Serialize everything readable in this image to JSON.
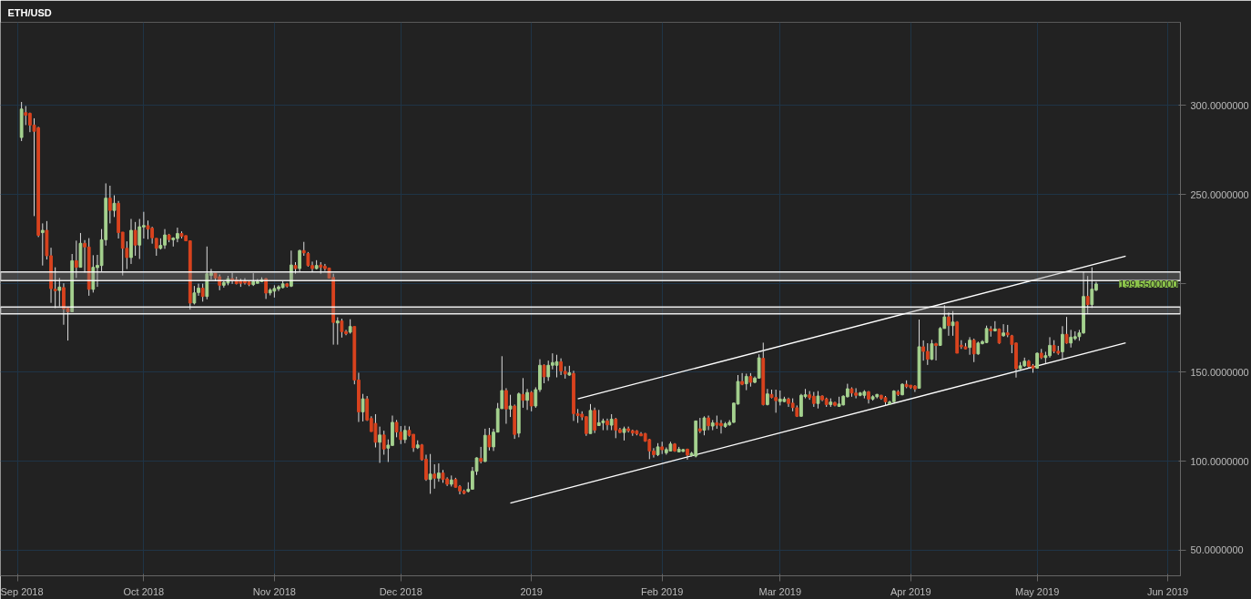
{
  "chart_data": {
    "type": "candlestick",
    "title": "ETH/USD",
    "grid": true,
    "colors": [
      "#a5d28f",
      "#d9431e",
      "#d9431e",
      "#d9431e",
      "#d9431e",
      "#a5d28f",
      "#d9431e",
      "#d9431e",
      "#d9431e",
      "#a5d28f",
      "#d9431e",
      "#d9431e",
      "#a5d28f",
      "#d9431e",
      "#a5d28f",
      "#d9431e",
      "#d9431e",
      "#a5d28f",
      "#a5d28f",
      "#a5d28f",
      "#a5d28f",
      "#d9431e",
      "#a5d28f",
      "#d9431e",
      "#d9431e",
      "#d9431e",
      "#a5d28f",
      "#d9431e",
      "#a5d28f",
      "#a5d28f",
      "#d9431e",
      "#d9431e",
      "#d9431e",
      "#a5d28f",
      "#a5d28f",
      "#d9431e",
      "#a5d28f",
      "#a5d28f",
      "#d9431e",
      "#d9431e",
      "#d9431e",
      "#a5d28f",
      "#a5d28f",
      "#d9431e",
      "#a5d28f",
      "#a5d28f",
      "#d9431e",
      "#d9431e",
      "#a5d28f",
      "#a5d28f",
      "#d9431e",
      "#d9431e",
      "#d9431e",
      "#d9431e",
      "#d9431e",
      "#a5d28f",
      "#a5d28f",
      "#a5d28f",
      "#d9431e",
      "#a5d28f",
      "#a5d28f",
      "#a5d28f",
      "#a5d28f",
      "#d9431e",
      "#a5d28f",
      "#d9431e",
      "#a5d28f",
      "#d9431e",
      "#d9431e",
      "#d9431e",
      "#a5d28f",
      "#d9431e",
      "#d9431e",
      "#d9431e",
      "#d9431e",
      "#a5d28f",
      "#d9431e",
      "#d9431e",
      "#a5d28f",
      "#d9431e",
      "#d9431e",
      "#a5d28f",
      "#d9431e",
      "#d9431e",
      "#d9431e",
      "#a5d28f",
      "#d9431e",
      "#a5d28f",
      "#a5d28f",
      "#d9431e",
      "#d9431e",
      "#a5d28f",
      "#d9431e",
      "#d9431e",
      "#a5d28f",
      "#d9431e",
      "#d9431e",
      "#a5d28f",
      "#d9431e",
      "#a5d28f",
      "#d9431e",
      "#d9431e",
      "#a5d28f",
      "#d9431e",
      "#d9431e",
      "#d9431e",
      "#a5d28f",
      "#a5d28f",
      "#a5d28f",
      "#d9431e",
      "#a5d28f",
      "#d9431e",
      "#a5d28f",
      "#a5d28f",
      "#a5d28f",
      "#d9431e",
      "#a5d28f",
      "#d9431e",
      "#a5d28f",
      "#d9431e",
      "#a5d28f",
      "#d9431e",
      "#a5d28f",
      "#a5d28f",
      "#d9431e",
      "#a5d28f",
      "#a5d28f",
      "#a5d28f",
      "#d9431e",
      "#d9431e",
      "#a5d28f",
      "#d9431e",
      "#d9431e",
      "#d9431e",
      "#d9431e",
      "#a5d28f",
      "#d9431e",
      "#a5d28f",
      "#a5d28f",
      "#d9431e",
      "#a5d28f",
      "#d9431e",
      "#d9431e",
      "#a5d28f",
      "#d9431e",
      "#d9431e",
      "#d9431e",
      "#d9431e",
      "#d9431e",
      "#d9431e",
      "#d9431e",
      "#a5d28f",
      "#d9431e",
      "#a5d28f",
      "#a5d28f",
      "#d9431e",
      "#a5d28f",
      "#a5d28f",
      "#d9431e",
      "#a5d28f",
      "#a5d28f",
      "#d9431e",
      "#a5d28f",
      "#d9431e",
      "#a5d28f",
      "#d9431e",
      "#d9431e",
      "#a5d28f",
      "#a5d28f",
      "#a5d28f",
      "#a5d28f",
      "#d9431e",
      "#a5d28f",
      "#d9431e",
      "#a5d28f",
      "#a5d28f",
      "#d9431e",
      "#a5d28f",
      "#d9431e",
      "#d9431e",
      "#a5d28f",
      "#a5d28f",
      "#d9431e",
      "#d9431e",
      "#d9431e",
      "#a5d28f",
      "#a5d28f",
      "#d9431e",
      "#d9431e",
      "#a5d28f",
      "#d9431e",
      "#d9431e",
      "#a5d28f",
      "#d9431e",
      "#a5d28f",
      "#a5d28f",
      "#a5d28f",
      "#d9431e",
      "#d9431e",
      "#a5d28f",
      "#a5d28f",
      "#d9431e",
      "#a5d28f",
      "#a5d28f",
      "#d9431e",
      "#d9431e",
      "#a5d28f",
      "#a5d28f",
      "#d9431e",
      "#a5d28f",
      "#d9431e",
      "#d9431e",
      "#d9431e",
      "#a5d28f",
      "#d9431e",
      "#d9431e",
      "#a5d28f",
      "#d9431e",
      "#a5d28f",
      "#a5d28f",
      "#d9431e",
      "#a5d28f",
      "#d9431e",
      "#d9431e",
      "#d9431e",
      "#a5d28f",
      "#d9431e",
      "#a5d28f",
      "#a5d28f",
      "#a5d28f",
      "#d9431e",
      "#a5d28f",
      "#d9431e",
      "#a5d28f",
      "#d9431e",
      "#d9431e",
      "#d9431e",
      "#a5d28f",
      "#a5d28f",
      "#d9431e",
      "#d9431e",
      "#a5d28f",
      "#d9431e",
      "#a5d28f",
      "#a5d28f",
      "#d9431e",
      "#d9431e",
      "#a5d28f",
      "#d9431e",
      "#a5d28f",
      "#a5d28f",
      "#a5d28f",
      "#a5d28f",
      "#d9431e",
      "#a5d28f",
      "#a5d28f"
    ],
    "xlim": [
      "2018-08-28",
      "2019-06-04"
    ],
    "ylim": [
      35.5,
      346.8
    ],
    "xticks": [
      {
        "value": "2018-09-01",
        "label": "Sep 2018"
      },
      {
        "value": "2018-10-01",
        "label": "Oct 2018"
      },
      {
        "value": "2018-11-01",
        "label": "Nov 2018"
      },
      {
        "value": "2018-12-01",
        "label": "Dec 2018"
      },
      {
        "value": "2019-01-01",
        "label": "2019"
      },
      {
        "value": "2019-02-01",
        "label": "Feb 2019"
      },
      {
        "value": "2019-03-01",
        "label": "Mar 2019"
      },
      {
        "value": "2019-04-01",
        "label": "Apr 2019"
      },
      {
        "value": "2019-05-01",
        "label": "May 2019"
      },
      {
        "value": "2019-06-01",
        "label": "Jun 2019"
      }
    ],
    "yticks": [
      {
        "value": 50,
        "label": "50.0000000"
      },
      {
        "value": 100,
        "label": "100.0000000"
      },
      {
        "value": 150,
        "label": "150.0000000"
      },
      {
        "value": 200,
        "label": null
      },
      {
        "value": 250,
        "label": "250.0000000"
      },
      {
        "value": 300,
        "label": "300.0000000"
      }
    ],
    "bands": [
      {
        "axis": "y",
        "from": 201.5,
        "to": 206.4,
        "color": "#ffffff"
      },
      {
        "axis": "y",
        "from": 182.8,
        "to": 186.7,
        "color": "#ffffff"
      }
    ],
    "annotations": [
      {
        "text": "199.5500000",
        "y": 199.55
      }
    ],
    "series": [
      {
        "type": "line",
        "color": "#ffffff",
        "x": [
          "2019-01-12",
          "2019-05-22"
        ],
        "values": [
          135.0,
          215.3
        ]
      },
      {
        "type": "line",
        "color": "#ffffff",
        "x": [
          "2018-12-27",
          "2019-05-22"
        ],
        "values": [
          76.4,
          166.5
        ]
      }
    ],
    "x": [
      "2018-09-02",
      "2018-09-03",
      "2018-09-04",
      "2018-09-05",
      "2018-09-06",
      "2018-09-07",
      "2018-09-08",
      "2018-09-09",
      "2018-09-10",
      "2018-09-11",
      "2018-09-12",
      "2018-09-13",
      "2018-09-14",
      "2018-09-15",
      "2018-09-16",
      "2018-09-17",
      "2018-09-18",
      "2018-09-19",
      "2018-09-20",
      "2018-09-21",
      "2018-09-22",
      "2018-09-23",
      "2018-09-24",
      "2018-09-25",
      "2018-09-26",
      "2018-09-27",
      "2018-09-28",
      "2018-09-29",
      "2018-09-30",
      "2018-10-01",
      "2018-10-02",
      "2018-10-03",
      "2018-10-04",
      "2018-10-05",
      "2018-10-06",
      "2018-10-07",
      "2018-10-08",
      "2018-10-09",
      "2018-10-10",
      "2018-10-11",
      "2018-10-12",
      "2018-10-13",
      "2018-10-14",
      "2018-10-15",
      "2018-10-16",
      "2018-10-17",
      "2018-10-18",
      "2018-10-19",
      "2018-10-20",
      "2018-10-21",
      "2018-10-22",
      "2018-10-23",
      "2018-10-24",
      "2018-10-25",
      "2018-10-26",
      "2018-10-27",
      "2018-10-28",
      "2018-10-29",
      "2018-10-30",
      "2018-10-31",
      "2018-11-01",
      "2018-11-02",
      "2018-11-03",
      "2018-11-04",
      "2018-11-05",
      "2018-11-06",
      "2018-11-07",
      "2018-11-08",
      "2018-11-09",
      "2018-11-10",
      "2018-11-11",
      "2018-11-12",
      "2018-11-13",
      "2018-11-14",
      "2018-11-15",
      "2018-11-16",
      "2018-11-17",
      "2018-11-18",
      "2018-11-19",
      "2018-11-20",
      "2018-11-21",
      "2018-11-22",
      "2018-11-23",
      "2018-11-24",
      "2018-11-25",
      "2018-11-26",
      "2018-11-27",
      "2018-11-28",
      "2018-11-29",
      "2018-11-30",
      "2018-12-01",
      "2018-12-02",
      "2018-12-03",
      "2018-12-04",
      "2018-12-05",
      "2018-12-06",
      "2018-12-07",
      "2018-12-08",
      "2018-12-09",
      "2018-12-10",
      "2018-12-11",
      "2018-12-12",
      "2018-12-13",
      "2018-12-14",
      "2018-12-15",
      "2018-12-16",
      "2018-12-17",
      "2018-12-18",
      "2018-12-19",
      "2018-12-20",
      "2018-12-21",
      "2018-12-22",
      "2018-12-23",
      "2018-12-24",
      "2018-12-25",
      "2018-12-26",
      "2018-12-27",
      "2018-12-28",
      "2018-12-29",
      "2018-12-30",
      "2018-12-31",
      "2019-01-01",
      "2019-01-02",
      "2019-01-03",
      "2019-01-04",
      "2019-01-05",
      "2019-01-06",
      "2019-01-07",
      "2019-01-08",
      "2019-01-09",
      "2019-01-10",
      "2019-01-11",
      "2019-01-12",
      "2019-01-13",
      "2019-01-14",
      "2019-01-15",
      "2019-01-16",
      "2019-01-17",
      "2019-01-18",
      "2019-01-19",
      "2019-01-20",
      "2019-01-21",
      "2019-01-22",
      "2019-01-23",
      "2019-01-24",
      "2019-01-25",
      "2019-01-26",
      "2019-01-27",
      "2019-01-28",
      "2019-01-29",
      "2019-01-30",
      "2019-01-31",
      "2019-02-01",
      "2019-02-02",
      "2019-02-03",
      "2019-02-04",
      "2019-02-05",
      "2019-02-06",
      "2019-02-07",
      "2019-02-08",
      "2019-02-09",
      "2019-02-10",
      "2019-02-11",
      "2019-02-12",
      "2019-02-13",
      "2019-02-14",
      "2019-02-15",
      "2019-02-16",
      "2019-02-17",
      "2019-02-18",
      "2019-02-19",
      "2019-02-20",
      "2019-02-21",
      "2019-02-22",
      "2019-02-23",
      "2019-02-24",
      "2019-02-25",
      "2019-02-26",
      "2019-02-27",
      "2019-02-28",
      "2019-03-01",
      "2019-03-02",
      "2019-03-03",
      "2019-03-04",
      "2019-03-05",
      "2019-03-06",
      "2019-03-07",
      "2019-03-08",
      "2019-03-09",
      "2019-03-10",
      "2019-03-11",
      "2019-03-12",
      "2019-03-13",
      "2019-03-14",
      "2019-03-15",
      "2019-03-16",
      "2019-03-17",
      "2019-03-18",
      "2019-03-19",
      "2019-03-20",
      "2019-03-21",
      "2019-03-22",
      "2019-03-23",
      "2019-03-24",
      "2019-03-25",
      "2019-03-26",
      "2019-03-27",
      "2019-03-28",
      "2019-03-29",
      "2019-03-30",
      "2019-03-31",
      "2019-04-01",
      "2019-04-02",
      "2019-04-03",
      "2019-04-04",
      "2019-04-05",
      "2019-04-06",
      "2019-04-07",
      "2019-04-08",
      "2019-04-09",
      "2019-04-10",
      "2019-04-11",
      "2019-04-12",
      "2019-04-13",
      "2019-04-14",
      "2019-04-15",
      "2019-04-16",
      "2019-04-17",
      "2019-04-18",
      "2019-04-19",
      "2019-04-20",
      "2019-04-21",
      "2019-04-22",
      "2019-04-23",
      "2019-04-24",
      "2019-04-25",
      "2019-04-26",
      "2019-04-27",
      "2019-04-28",
      "2019-04-29",
      "2019-04-30",
      "2019-05-01",
      "2019-05-02",
      "2019-05-03",
      "2019-05-04",
      "2019-05-05",
      "2019-05-06",
      "2019-05-07",
      "2019-05-08",
      "2019-05-09",
      "2019-05-10",
      "2019-05-11",
      "2019-05-12",
      "2019-05-13",
      "2019-05-14",
      "2019-05-15"
    ],
    "ohlc": [
      [
        282,
        302,
        280,
        298
      ],
      [
        296,
        299.7,
        289,
        294.5
      ],
      [
        295.6,
        296,
        285,
        289
      ],
      [
        289,
        292.8,
        237.8,
        285.5
      ],
      [
        287.5,
        288,
        226,
        227
      ],
      [
        228.5,
        233.7,
        210,
        229.8
      ],
      [
        229.8,
        235,
        213.4,
        215.5
      ],
      [
        215.5,
        220,
        189,
        197
      ],
      [
        196.7,
        209,
        186,
        195.8
      ],
      [
        196,
        203,
        187,
        197.9
      ],
      [
        197.6,
        200,
        176.7,
        185.7
      ],
      [
        186,
        186,
        167.8,
        184
      ],
      [
        184,
        216.5,
        184,
        212.7
      ],
      [
        212.7,
        224,
        203,
        209
      ],
      [
        209,
        228.3,
        209,
        222.5
      ],
      [
        222.5,
        224.3,
        206,
        220.4
      ],
      [
        220.4,
        225.4,
        193,
        196.6
      ],
      [
        196.6,
        215.8,
        194.8,
        209
      ],
      [
        208.8,
        216,
        198,
        210.1
      ],
      [
        210,
        230.5,
        206.8,
        224.5
      ],
      [
        224.5,
        256.2,
        221.2,
        247.9
      ],
      [
        247.9,
        254.9,
        233.7,
        241
      ],
      [
        241,
        249.5,
        237.3,
        245
      ],
      [
        245,
        246.3,
        225.2,
        228.5
      ],
      [
        228.8,
        228.8,
        204.4,
        219.7
      ],
      [
        219.7,
        223.6,
        208,
        214.5
      ],
      [
        214.5,
        236.2,
        210.9,
        229.8
      ],
      [
        229.8,
        234.5,
        215.5,
        221.5
      ],
      [
        221.5,
        236.2,
        213.7,
        231.8
      ],
      [
        231.7,
        240.2,
        225.2,
        232.5
      ],
      [
        232.4,
        235.3,
        224.8,
        230.5
      ],
      [
        231,
        231.8,
        222.3,
        225.6
      ],
      [
        225.3,
        225.3,
        215.5,
        219.7
      ],
      [
        219.7,
        225.3,
        219,
        221.3
      ],
      [
        221.5,
        230.5,
        219.4,
        227.2
      ],
      [
        227.2,
        227.8,
        223.1,
        224.6
      ],
      [
        224.5,
        225.9,
        220.7,
        225.4
      ],
      [
        225.2,
        231.3,
        223.1,
        228
      ],
      [
        228,
        229.2,
        225.3,
        226.4
      ],
      [
        226.8,
        226.8,
        223.9,
        223.9
      ],
      [
        223.9,
        223.9,
        185.2,
        188.9
      ],
      [
        188.9,
        198.5,
        188.1,
        194.6
      ],
      [
        194.8,
        199.8,
        193,
        197.3
      ],
      [
        197.3,
        199.8,
        189.7,
        192.6
      ],
      [
        192.6,
        220.7,
        191,
        205.4
      ],
      [
        204.4,
        208.1,
        202.1,
        205.7
      ],
      [
        205.7,
        205.7,
        201.3,
        203
      ],
      [
        203.7,
        205,
        196.1,
        198.9
      ],
      [
        198.9,
        201.3,
        197.6,
        200.5
      ],
      [
        200.2,
        204.2,
        198.9,
        202.6
      ],
      [
        202.6,
        205.9,
        199.7,
        201.8
      ],
      [
        202,
        203.7,
        199.4,
        199.8
      ],
      [
        201.3,
        202.6,
        198,
        200
      ],
      [
        201.3,
        202.9,
        199.3,
        200.2
      ],
      [
        200.8,
        201.3,
        198.4,
        199.3
      ],
      [
        199.3,
        205.7,
        198.5,
        201
      ],
      [
        200,
        202.4,
        200,
        201
      ],
      [
        201,
        203.4,
        201,
        202.1
      ],
      [
        202.6,
        202.9,
        191.2,
        194.5
      ],
      [
        194.6,
        197.2,
        193.2,
        196.2
      ],
      [
        195.6,
        198.9,
        192,
        197.1
      ],
      [
        196.9,
        198.9,
        195.6,
        198
      ],
      [
        197.6,
        201.3,
        197.2,
        199.7
      ],
      [
        199.7,
        200.2,
        197.6,
        198.4
      ],
      [
        198.4,
        218.4,
        197.9,
        210.3
      ],
      [
        210,
        211.9,
        205.4,
        208.3
      ],
      [
        208.3,
        218.9,
        206.7,
        218.4
      ],
      [
        218.4,
        223.3,
        215.5,
        217.1
      ],
      [
        216.8,
        217.6,
        209.4,
        210
      ],
      [
        210,
        212.2,
        206.2,
        208.3
      ],
      [
        208.3,
        213,
        207.8,
        210
      ],
      [
        210.3,
        211.9,
        205.4,
        209
      ],
      [
        209.6,
        210.9,
        207,
        208.3
      ],
      [
        208.6,
        208.6,
        202.9,
        202.9
      ],
      [
        203.3,
        205.4,
        165.5,
        178
      ],
      [
        177.7,
        180.9,
        165.5,
        178.8
      ],
      [
        178.8,
        180.1,
        169.5,
        172.8
      ],
      [
        172.8,
        173.8,
        170.8,
        171.7
      ],
      [
        172.5,
        179.8,
        171.7,
        175.7
      ],
      [
        175.7,
        175.7,
        143.2,
        145.6
      ],
      [
        145.6,
        149.7,
        122,
        127.7
      ],
      [
        127.7,
        137.8,
        122.3,
        135
      ],
      [
        135,
        136.6,
        122.6,
        123.1
      ],
      [
        124,
        125.2,
        116.6,
        116.6
      ],
      [
        121.2,
        126.4,
        107.7,
        110.6
      ],
      [
        110.6,
        119.4,
        99,
        114.7
      ],
      [
        114.7,
        117.1,
        103.6,
        106.8
      ],
      [
        107.3,
        112.2,
        99.5,
        109
      ],
      [
        108.8,
        125.6,
        108.8,
        121.8
      ],
      [
        121.8,
        123.1,
        113.4,
        116.4
      ],
      [
        116.3,
        119.7,
        109.6,
        112.1
      ],
      [
        112.1,
        119.9,
        110.1,
        117.3
      ],
      [
        117.3,
        119.5,
        113.8,
        114.5
      ],
      [
        115.1,
        115.1,
        105.2,
        107.5
      ],
      [
        107.5,
        111.7,
        106.8,
        109.1
      ],
      [
        109.1,
        109.6,
        100.3,
        100.8
      ],
      [
        101.1,
        103.6,
        88.9,
        89.7
      ],
      [
        89.7,
        104,
        81.6,
        92.7
      ],
      [
        92.7,
        98.2,
        84.5,
        90.4
      ],
      [
        90.4,
        98.7,
        88.4,
        93.3
      ],
      [
        93.3,
        95,
        87.8,
        89.7
      ],
      [
        90,
        90.9,
        86,
        87
      ],
      [
        87,
        91.9,
        85.7,
        89.4
      ],
      [
        89.7,
        90.6,
        85.2,
        85.3
      ],
      [
        85.7,
        86.5,
        81.3,
        83.2
      ],
      [
        83.2,
        84,
        81.3,
        81.9
      ],
      [
        83,
        88.1,
        82.4,
        84.2
      ],
      [
        84.2,
        96.7,
        84.2,
        94.3
      ],
      [
        94.3,
        102.1,
        92.2,
        101.8
      ],
      [
        101.5,
        108,
        98.7,
        99.8
      ],
      [
        99.8,
        118.2,
        99.5,
        114.5
      ],
      [
        114.5,
        118.7,
        106,
        108
      ],
      [
        108,
        118.2,
        105.7,
        116.3
      ],
      [
        116.3,
        132.7,
        116.3,
        129.5
      ],
      [
        129.5,
        159,
        129.5,
        139.7
      ],
      [
        139.7,
        141,
        121,
        129.3
      ],
      [
        129.3,
        137.3,
        124.8,
        131
      ],
      [
        131,
        131.8,
        112.5,
        115
      ],
      [
        115.7,
        138.6,
        113.4,
        137.8
      ],
      [
        137.5,
        146.7,
        130,
        134.2
      ],
      [
        134.2,
        140.6,
        128.8,
        138.6
      ],
      [
        138.6,
        139.4,
        128,
        131
      ],
      [
        131,
        141.5,
        130,
        140.2
      ],
      [
        140.2,
        157.3,
        138.9,
        153.9
      ],
      [
        153.9,
        154.4,
        143.8,
        147.4
      ],
      [
        147.4,
        156.5,
        145.1,
        153.9
      ],
      [
        153.9,
        160.6,
        151.6,
        155.4
      ],
      [
        153.9,
        159.8,
        147.1,
        155.9
      ],
      [
        155.9,
        157.8,
        148.4,
        150.7
      ],
      [
        150.5,
        153.3,
        146.4,
        149
      ],
      [
        148.4,
        153.6,
        148,
        149.7
      ],
      [
        149.3,
        150.8,
        122.6,
        126.7
      ],
      [
        126.7,
        129.3,
        121.5,
        125.6
      ],
      [
        126.4,
        128,
        123,
        124.8
      ],
      [
        125,
        125,
        114.2,
        115.5
      ],
      [
        115.5,
        132.1,
        115.5,
        128.5
      ],
      [
        128.5,
        130.1,
        115.8,
        117.4
      ],
      [
        120,
        128.8,
        119.9,
        121.6
      ],
      [
        121.6,
        123.9,
        117.4,
        122.6
      ],
      [
        122.6,
        123.9,
        117.4,
        120.4
      ],
      [
        120.2,
        126.4,
        117.4,
        123.6
      ],
      [
        123.6,
        124.3,
        112.9,
        117.4
      ],
      [
        117.7,
        118.7,
        115.8,
        116.1
      ],
      [
        116.1,
        119.4,
        111.6,
        118.2
      ],
      [
        118.2,
        119.4,
        116.1,
        117.1
      ],
      [
        117.1,
        117.7,
        114.2,
        115.8
      ],
      [
        117,
        117.4,
        114.5,
        115.3
      ],
      [
        115.3,
        116.3,
        114.2,
        114.2
      ],
      [
        115.5,
        115.8,
        110.9,
        111.2
      ],
      [
        112.1,
        112.5,
        101.1,
        105.7
      ],
      [
        105.7,
        107.3,
        102,
        103.6
      ],
      [
        103.6,
        110.1,
        102.8,
        108
      ],
      [
        108,
        110.9,
        104,
        106.4
      ],
      [
        104.7,
        107.7,
        103.6,
        106.5
      ],
      [
        105.7,
        110.9,
        105.7,
        109.6
      ],
      [
        109.6,
        110.1,
        105.2,
        105.7
      ],
      [
        105.2,
        108,
        105,
        106.7
      ],
      [
        105.4,
        106.8,
        105.2,
        106.5
      ],
      [
        106.7,
        107,
        100.8,
        103.4
      ],
      [
        103.2,
        105.2,
        102.6,
        104.4
      ],
      [
        102.8,
        122.6,
        102.1,
        122.6
      ],
      [
        118.2,
        124.3,
        115.8,
        116.9
      ],
      [
        117.4,
        125.2,
        114.5,
        124.3
      ],
      [
        124.3,
        125.6,
        117.4,
        119.9
      ],
      [
        119.7,
        123.1,
        117.4,
        121.5
      ],
      [
        121.5,
        125.6,
        118.2,
        120.2
      ],
      [
        121.2,
        123.1,
        115.5,
        119.9
      ],
      [
        119.5,
        122,
        118.7,
        121
      ],
      [
        120.4,
        123.1,
        119.9,
        121.8
      ],
      [
        121.8,
        132.9,
        121.5,
        132.6
      ],
      [
        132.1,
        148.4,
        131.8,
        144.8
      ],
      [
        144.8,
        149.5,
        142.7,
        143.2
      ],
      [
        143.5,
        149.2,
        139.9,
        147.6
      ],
      [
        147.6,
        149.5,
        141.9,
        144.3
      ],
      [
        144.3,
        147.6,
        143.8,
        146.7
      ],
      [
        146.7,
        160.1,
        146.4,
        158.1
      ],
      [
        157.8,
        166.6,
        131.3,
        131.8
      ],
      [
        131.8,
        140.6,
        131.3,
        137.8
      ],
      [
        137.5,
        140.2,
        135.3,
        135.8
      ],
      [
        135.8,
        140.2,
        127.2,
        134
      ],
      [
        133.5,
        139.7,
        131.3,
        134.9
      ],
      [
        133.5,
        136.2,
        133.2,
        134.9
      ],
      [
        134.9,
        135.7,
        130.5,
        132.4
      ],
      [
        132.6,
        135.3,
        128,
        130.1
      ],
      [
        130,
        131.3,
        124.8,
        125.2
      ],
      [
        125.2,
        137.8,
        125.2,
        137
      ],
      [
        136.3,
        140.6,
        135.3,
        137.3
      ],
      [
        137.3,
        139.4,
        134.5,
        135.7
      ],
      [
        136.5,
        138.9,
        130.5,
        132.4
      ],
      [
        132.4,
        139.4,
        129.6,
        136.6
      ],
      [
        136.6,
        137,
        133.7,
        134.5
      ],
      [
        135,
        135.7,
        130.5,
        131.8
      ],
      [
        131.8,
        135.3,
        130.5,
        133.2
      ],
      [
        132.9,
        133.4,
        130.8,
        131.4
      ],
      [
        130.8,
        136.2,
        130.5,
        132.1
      ],
      [
        131.6,
        137,
        131.3,
        136.5
      ],
      [
        136.2,
        143.5,
        135.8,
        140.7
      ],
      [
        140.7,
        141.5,
        136.2,
        138.3
      ],
      [
        138.3,
        141,
        135.3,
        137
      ],
      [
        137,
        138.9,
        136.5,
        138.3
      ],
      [
        137,
        139.9,
        135.3,
        139
      ],
      [
        139,
        139.4,
        132.4,
        134.9
      ],
      [
        134.9,
        137,
        134,
        136.2
      ],
      [
        136.2,
        137.8,
        135.3,
        137.5
      ],
      [
        137,
        137.3,
        134.5,
        135.3
      ],
      [
        135.7,
        136.6,
        131.3,
        133.4
      ],
      [
        132.1,
        134,
        131.8,
        133.2
      ],
      [
        133.4,
        139.9,
        133.4,
        139.4
      ],
      [
        139,
        139.9,
        136.6,
        137.5
      ],
      [
        137.3,
        143.8,
        137,
        143.2
      ],
      [
        143.2,
        145.4,
        141,
        141.9
      ],
      [
        142.7,
        142.7,
        140.6,
        141.4
      ],
      [
        142.2,
        142.7,
        138.9,
        140.6
      ],
      [
        141,
        179.6,
        141,
        164.3
      ],
      [
        164.3,
        167.9,
        156.5,
        161.7
      ],
      [
        161.7,
        166.3,
        154.1,
        157.3
      ],
      [
        157.3,
        168.2,
        156.8,
        166
      ],
      [
        166,
        166.5,
        156.6,
        165
      ],
      [
        165.1,
        175.4,
        164.8,
        174.6
      ],
      [
        174.6,
        187.7,
        174.6,
        181.1
      ],
      [
        181.1,
        183.6,
        170.5,
        176.2
      ],
      [
        176.2,
        184.4,
        170.5,
        178.2
      ],
      [
        178.2,
        178.7,
        160.7,
        160.7
      ],
      [
        165.2,
        168,
        163.1,
        164.3
      ],
      [
        164.3,
        166.4,
        162.8,
        163.1
      ],
      [
        163.9,
        169.7,
        159.8,
        168
      ],
      [
        168,
        168.9,
        155.7,
        160.3
      ],
      [
        160.3,
        167.2,
        159.8,
        166.4
      ],
      [
        166.1,
        168,
        165.6,
        167.2
      ],
      [
        166.7,
        176.2,
        166.4,
        174.6
      ],
      [
        174.3,
        175.9,
        170,
        173.3
      ],
      [
        173.3,
        178.7,
        172.9,
        174.3
      ],
      [
        174.3,
        174.6,
        166,
        166.4
      ],
      [
        170.5,
        177,
        170,
        172.1
      ],
      [
        172.1,
        176.6,
        169.7,
        171
      ],
      [
        170.5,
        171,
        160.7,
        165.6
      ],
      [
        166.4,
        166.7,
        147,
        152
      ],
      [
        152,
        155.7,
        151.6,
        153.6
      ],
      [
        153.6,
        158.2,
        153,
        156.2
      ],
      [
        156.2,
        156.9,
        152,
        153.3
      ],
      [
        153.6,
        154.6,
        149.7,
        152.3
      ],
      [
        152.3,
        161.1,
        152,
        160.7
      ],
      [
        160.7,
        163.1,
        157.4,
        158.2
      ],
      [
        158.2,
        161.5,
        154.9,
        159.3
      ],
      [
        159.3,
        169.7,
        158.2,
        165.1
      ],
      [
        165.1,
        168,
        160.7,
        161.8
      ],
      [
        161.8,
        164.8,
        159.8,
        160.7
      ],
      [
        161.5,
        175.9,
        157.4,
        171.3
      ],
      [
        171.3,
        181.1,
        166,
        166.4
      ],
      [
        166.4,
        173.8,
        163.9,
        169.7
      ],
      [
        168.9,
        173,
        168,
        170
      ],
      [
        170,
        173.8,
        167.7,
        172.1
      ],
      [
        172.1,
        206.6,
        171.6,
        192.6
      ],
      [
        192.6,
        204.1,
        182.8,
        188
      ],
      [
        188,
        209,
        186.1,
        196.7
      ],
      [
        196.2,
        200.8,
        195.6,
        199.6
      ]
    ]
  }
}
